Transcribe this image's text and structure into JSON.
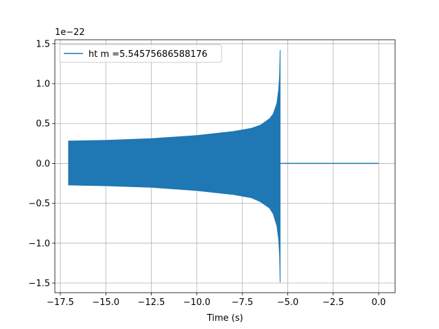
{
  "chart_data": {
    "type": "line",
    "title": "",
    "xlabel": "Time (s)",
    "ylabel": "",
    "offset_label": "1e−22",
    "y_scale_exponent": -22,
    "xlim": [
      -17.8,
      0.9
    ],
    "ylim": [
      -1.62,
      1.55
    ],
    "grid": true,
    "legend_position": "top-left",
    "x_ticks": [
      -17.5,
      -15.0,
      -12.5,
      -10.0,
      -7.5,
      -5.0,
      -2.5,
      0.0
    ],
    "x_tick_labels": [
      "−17.5",
      "−15.0",
      "−12.5",
      "−10.0",
      "−7.5",
      "−5.0",
      "−2.5",
      "0.0"
    ],
    "y_ticks": [
      -1.5,
      -1.0,
      -0.5,
      0.0,
      0.5,
      1.0,
      1.5
    ],
    "y_tick_labels": [
      "−1.5",
      "−1.0",
      "−0.5",
      "0.0",
      "0.5",
      "1.0",
      "1.5"
    ],
    "series": [
      {
        "name": "ht m =5.54575686588176",
        "color": "#1f77b4",
        "upper_envelope": [
          [
            -17.05,
            0.28
          ],
          [
            -15.0,
            0.29
          ],
          [
            -12.5,
            0.31
          ],
          [
            -10.0,
            0.35
          ],
          [
            -8.0,
            0.4
          ],
          [
            -7.0,
            0.44
          ],
          [
            -6.5,
            0.48
          ],
          [
            -6.0,
            0.56
          ],
          [
            -5.8,
            0.62
          ],
          [
            -5.6,
            0.75
          ],
          [
            -5.5,
            0.92
          ],
          [
            -5.45,
            1.1
          ],
          [
            -5.42,
            1.42
          ]
        ],
        "lower_envelope": [
          [
            -17.05,
            -0.27
          ],
          [
            -15.0,
            -0.28
          ],
          [
            -12.5,
            -0.3
          ],
          [
            -10.0,
            -0.34
          ],
          [
            -8.0,
            -0.39
          ],
          [
            -7.0,
            -0.43
          ],
          [
            -6.5,
            -0.48
          ],
          [
            -6.0,
            -0.56
          ],
          [
            -5.8,
            -0.63
          ],
          [
            -5.6,
            -0.78
          ],
          [
            -5.5,
            -0.95
          ],
          [
            -5.45,
            -1.15
          ],
          [
            -5.42,
            -1.49
          ]
        ],
        "tail": [
          [
            -5.4,
            0.0
          ],
          [
            0.0,
            0.0
          ]
        ]
      }
    ]
  }
}
